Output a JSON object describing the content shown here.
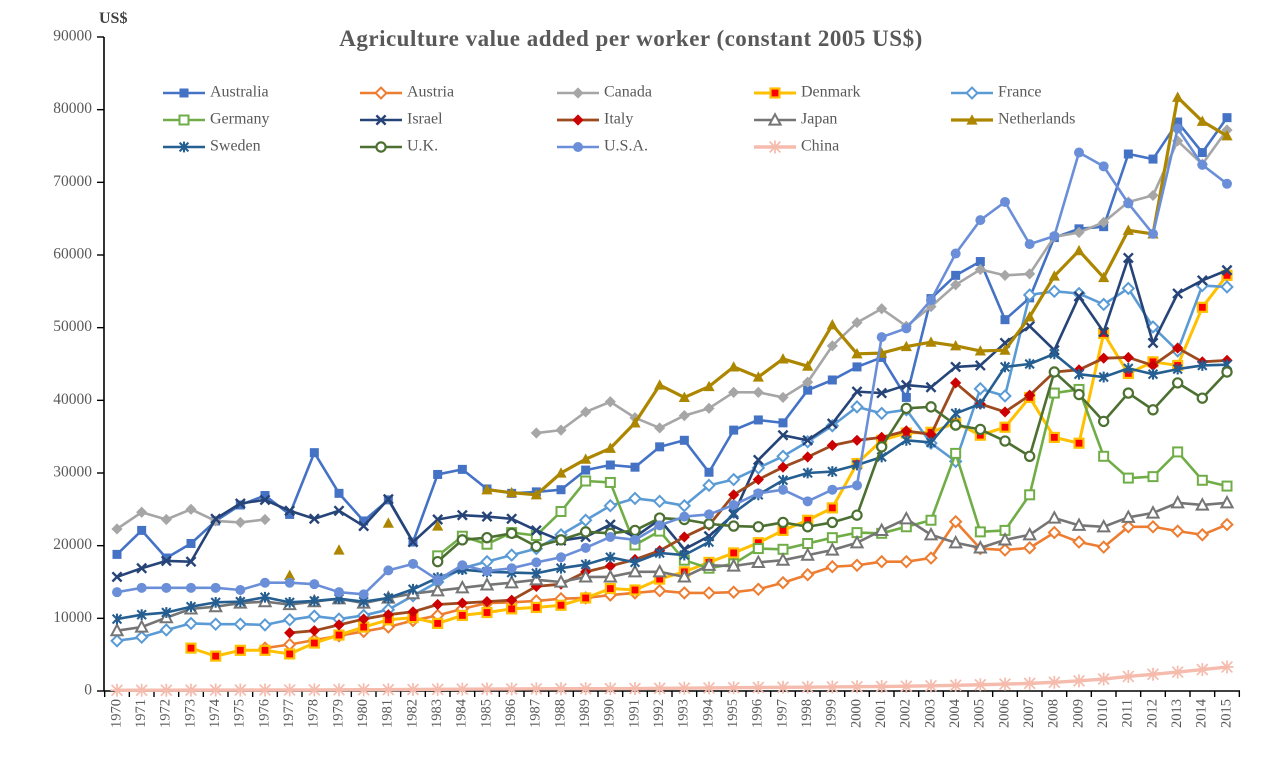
{
  "chart_data": {
    "type": "line",
    "title": "Agriculture value added per worker (constant 2005 US$)",
    "ylabel": "US$",
    "xlabel": "",
    "grid": false,
    "legend_position": "top-inside-3rows-5cols",
    "ylim": [
      0,
      90000
    ],
    "ytick_step": 10000,
    "y_ticks": [
      0,
      10000,
      20000,
      30000,
      40000,
      50000,
      60000,
      70000,
      80000,
      90000
    ],
    "x": [
      1970,
      1971,
      1972,
      1973,
      1974,
      1975,
      1976,
      1977,
      1978,
      1979,
      1980,
      1981,
      1982,
      1983,
      1984,
      1985,
      1986,
      1987,
      1988,
      1989,
      1990,
      1991,
      1992,
      1993,
      1994,
      1995,
      1996,
      1997,
      1998,
      1999,
      2000,
      2001,
      2002,
      2003,
      2004,
      2005,
      2006,
      2007,
      2008,
      2009,
      2010,
      2011,
      2012,
      2013,
      2014,
      2015
    ],
    "series": [
      {
        "name": "Australia",
        "color": "#4472C4",
        "marker": "square",
        "values": [
          18800,
          22100,
          18300,
          20300,
          23400,
          25600,
          26900,
          24300,
          32800,
          27200,
          23400,
          26300,
          20500,
          29800,
          30500,
          27800,
          27200,
          27400,
          27700,
          30400,
          31100,
          30800,
          33600,
          34500,
          30100,
          35900,
          37300,
          36900,
          41400,
          42800,
          44600,
          45900,
          40400,
          54000,
          57200,
          59100,
          51100,
          54100,
          62400,
          63600,
          63900,
          73900,
          73200,
          78300,
          74100,
          78900
        ]
      },
      {
        "name": "Austria",
        "color": "#ED7D31",
        "marker": "diamond-open",
        "values": [
          null,
          null,
          null,
          null,
          null,
          null,
          5900,
          6400,
          7000,
          7600,
          8200,
          8800,
          9700,
          10400,
          11300,
          12100,
          12200,
          12400,
          12700,
          12800,
          13200,
          13500,
          13800,
          13500,
          13500,
          13600,
          14000,
          14900,
          16000,
          17100,
          17300,
          17800,
          17800,
          18300,
          23300,
          19600,
          19400,
          19700,
          21800,
          20500,
          19800,
          22600,
          22600,
          22000,
          21500,
          22900
        ]
      },
      {
        "name": "Canada",
        "color": "#A6A6A6",
        "marker": "diamond",
        "values": [
          22300,
          24600,
          23600,
          25000,
          23400,
          23200,
          23600,
          null,
          null,
          null,
          null,
          null,
          null,
          null,
          null,
          null,
          null,
          35500,
          35900,
          38400,
          39800,
          37600,
          36200,
          37900,
          38900,
          41100,
          41100,
          40400,
          42500,
          47500,
          50700,
          52600,
          50200,
          52900,
          55900,
          58000,
          57200,
          57400,
          62500,
          63100,
          64500,
          67300,
          68200,
          75700,
          72500,
          77200
        ]
      },
      {
        "name": "Denmark",
        "color": "#FFC000",
        "marker": "square-red",
        "marker_fill": "#FF0000",
        "values": [
          null,
          null,
          null,
          5900,
          4800,
          5600,
          5600,
          5100,
          6600,
          7700,
          8800,
          9800,
          10100,
          9300,
          10400,
          10800,
          11300,
          11500,
          11800,
          12800,
          14100,
          13900,
          15400,
          16400,
          17700,
          19000,
          20400,
          22100,
          23500,
          25200,
          31300,
          34500,
          35500,
          35600,
          36900,
          35200,
          36300,
          40400,
          34900,
          34100,
          49200,
          43700,
          45300,
          44800,
          52800,
          57200
        ]
      },
      {
        "name": "France",
        "color": "#5B9BD5",
        "marker": "diamond-open",
        "values": [
          6900,
          7400,
          8400,
          9300,
          9200,
          9200,
          9100,
          9800,
          10300,
          9900,
          10400,
          11200,
          13100,
          15000,
          16900,
          17800,
          18700,
          19600,
          21500,
          23500,
          25500,
          26500,
          26100,
          25500,
          28300,
          29100,
          30700,
          32300,
          34300,
          36500,
          39100,
          38200,
          38700,
          34100,
          31600,
          41600,
          40600,
          54500,
          55000,
          54700,
          53200,
          55400,
          50100,
          46800,
          55800,
          55600
        ]
      },
      {
        "name": "Germany",
        "color": "#70AD47",
        "marker": "square-open",
        "values": [
          null,
          null,
          null,
          null,
          null,
          null,
          null,
          null,
          null,
          null,
          null,
          null,
          null,
          18600,
          21300,
          20200,
          21800,
          21400,
          24700,
          28900,
          28700,
          20100,
          22000,
          18000,
          16900,
          17500,
          19600,
          19500,
          20300,
          21100,
          21800,
          21700,
          22600,
          23500,
          32700,
          21900,
          22100,
          27000,
          41000,
          41500,
          32300,
          29300,
          29500,
          32900,
          29000,
          28200
        ]
      },
      {
        "name": "Israel",
        "color": "#264478",
        "marker": "x",
        "values": [
          15700,
          16900,
          17900,
          17800,
          23700,
          25800,
          26300,
          24800,
          23700,
          24800,
          22700,
          26400,
          20500,
          23600,
          24200,
          24000,
          23700,
          22100,
          20700,
          21200,
          22900,
          21200,
          23600,
          19500,
          21300,
          24300,
          31800,
          35200,
          34500,
          36800,
          41200,
          41000,
          42100,
          41800,
          44600,
          44800,
          47900,
          50200,
          46900,
          54300,
          49400,
          59600,
          47900,
          54700,
          56500,
          57900
        ]
      },
      {
        "name": "Italy",
        "color": "#9E4A1F",
        "marker": "diamond",
        "marker_fill": "#CC0000",
        "values": [
          null,
          null,
          null,
          null,
          null,
          null,
          null,
          8000,
          8300,
          9100,
          9900,
          10500,
          10900,
          11900,
          12100,
          12300,
          12500,
          14400,
          14700,
          16400,
          17200,
          18100,
          19300,
          21200,
          22800,
          27000,
          29100,
          30800,
          32200,
          33800,
          34500,
          34900,
          35800,
          35300,
          42400,
          39500,
          38400,
          40700,
          43900,
          44200,
          45800,
          45900,
          44800,
          47200,
          45300,
          45500
        ]
      },
      {
        "name": "Japan",
        "color": "#757575",
        "marker": "triangle-open",
        "values": [
          8300,
          8800,
          10100,
          11300,
          11600,
          12100,
          12300,
          11900,
          12300,
          12700,
          12100,
          12800,
          13400,
          13800,
          14200,
          14600,
          14900,
          15300,
          15000,
          15700,
          15700,
          16400,
          16400,
          15700,
          17300,
          17200,
          17700,
          18000,
          18700,
          19400,
          20400,
          22100,
          23700,
          21500,
          20400,
          19700,
          20800,
          21500,
          23800,
          22800,
          22600,
          23900,
          24500,
          25900,
          25600,
          25900
        ]
      },
      {
        "name": "Netherlands",
        "color": "#AD8600",
        "marker": "triangle",
        "values": [
          null,
          null,
          null,
          null,
          null,
          null,
          null,
          15900,
          null,
          19400,
          null,
          23100,
          null,
          22700,
          null,
          27700,
          27300,
          27000,
          30000,
          31900,
          33400,
          36900,
          42100,
          40400,
          41900,
          44600,
          43200,
          45700,
          44700,
          50400,
          46400,
          46500,
          47400,
          48000,
          47500,
          46800,
          46900,
          51500,
          57100,
          60600,
          56900,
          63400,
          62900,
          81700,
          78400,
          76400
        ]
      },
      {
        "name": "Sweden",
        "color": "#255E91",
        "marker": "asterisk",
        "values": [
          9900,
          10500,
          10800,
          11600,
          12200,
          12300,
          12900,
          12200,
          12400,
          12700,
          12300,
          12800,
          14000,
          15600,
          16700,
          16400,
          16300,
          16200,
          16900,
          17400,
          18400,
          17700,
          19000,
          18700,
          20500,
          24500,
          27000,
          29000,
          30000,
          30200,
          31100,
          32200,
          34500,
          34200,
          38200,
          39500,
          44600,
          45000,
          46400,
          43600,
          43200,
          44400,
          43600,
          44300,
          44800,
          44900
        ]
      },
      {
        "name": "U.K.",
        "color": "#4C7031",
        "marker": "circle-open",
        "values": [
          null,
          null,
          null,
          null,
          null,
          null,
          null,
          null,
          null,
          null,
          null,
          null,
          null,
          17800,
          20800,
          21100,
          21700,
          19900,
          20800,
          21900,
          21700,
          22100,
          23800,
          23600,
          23000,
          22700,
          22600,
          23200,
          22600,
          23200,
          24200,
          33600,
          38900,
          39100,
          36600,
          36000,
          34400,
          32300,
          43900,
          40800,
          37100,
          41000,
          38700,
          42400,
          40300,
          43900
        ]
      },
      {
        "name": "U.S.A.",
        "color": "#6A8FD8",
        "marker": "circle",
        "values": [
          13600,
          14200,
          14200,
          14200,
          14200,
          13900,
          14900,
          14900,
          14700,
          13600,
          13300,
          16600,
          17500,
          15300,
          17300,
          16500,
          16900,
          17700,
          18400,
          19700,
          21200,
          20800,
          22800,
          24000,
          24300,
          25600,
          27200,
          27700,
          26100,
          27700,
          28300,
          48700,
          49900,
          53800,
          60200,
          64800,
          67300,
          61500,
          62600,
          74100,
          72200,
          67100,
          62900,
          77400,
          72400,
          69800
        ]
      },
      {
        "name": "China",
        "color": "#F5BBAD",
        "marker": "asterisk-big",
        "values": [
          100,
          110,
          110,
          120,
          130,
          130,
          140,
          140,
          150,
          170,
          180,
          190,
          210,
          230,
          250,
          270,
          280,
          300,
          310,
          310,
          320,
          340,
          360,
          390,
          420,
          450,
          480,
          510,
          530,
          560,
          590,
          620,
          660,
          710,
          780,
          860,
          950,
          1050,
          1200,
          1400,
          1650,
          2000,
          2300,
          2600,
          2950,
          3300
        ]
      }
    ],
    "legend_order": [
      "Australia",
      "Austria",
      "Canada",
      "Denmark",
      "France",
      "Germany",
      "Israel",
      "Italy",
      "Japan",
      "Netherlands",
      "Sweden",
      "U.K.",
      "U.S.A.",
      "China"
    ],
    "axis_text_color": "#595959",
    "title_color": "#595959"
  }
}
